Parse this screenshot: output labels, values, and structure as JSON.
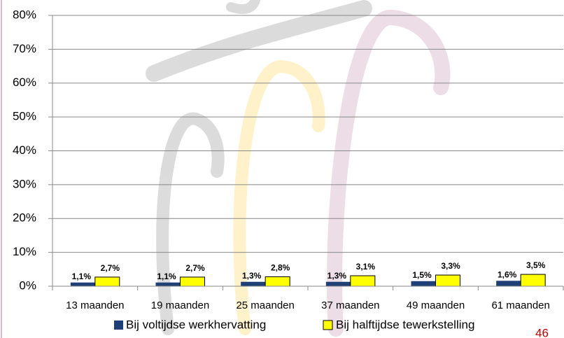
{
  "chart_data": {
    "type": "bar",
    "categories": [
      "13 maanden",
      "19 maanden",
      "25 maanden",
      "37 maanden",
      "49 maanden",
      "61 maanden"
    ],
    "series": [
      {
        "name": "Bij voltijdse werkhervatting",
        "color": "#1f3f77",
        "values": [
          1.1,
          1.1,
          1.3,
          1.3,
          1.5,
          1.6
        ],
        "value_labels": [
          "1,1%",
          "1,1%",
          "1,3%",
          "1,3%",
          "1,5%",
          "1,6%"
        ]
      },
      {
        "name": "Bij halftijdse tewerkstelling",
        "color": "#ffff00",
        "values": [
          2.7,
          2.7,
          2.8,
          3.1,
          3.3,
          3.5
        ],
        "value_labels": [
          "2,7%",
          "2,7%",
          "2,8%",
          "3,1%",
          "3,3%",
          "3,5%"
        ]
      }
    ],
    "ylim": [
      0,
      80
    ],
    "yticks": [
      {
        "value": 0,
        "label": "0%"
      },
      {
        "value": 10,
        "label": "10%"
      },
      {
        "value": 20,
        "label": "20%"
      },
      {
        "value": 30,
        "label": "30%"
      },
      {
        "value": 40,
        "label": "40%"
      },
      {
        "value": 50,
        "label": "50%"
      },
      {
        "value": 60,
        "label": "60%"
      },
      {
        "value": 70,
        "label": "70%"
      },
      {
        "value": 80,
        "label": "80%"
      }
    ],
    "grid": true
  },
  "page_number": "46"
}
